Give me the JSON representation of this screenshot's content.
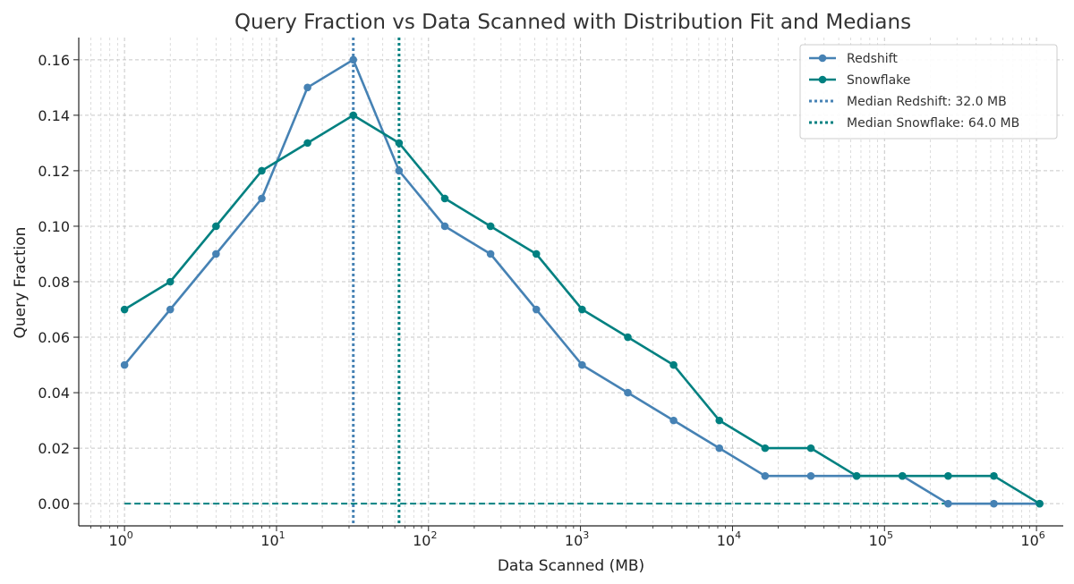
{
  "chart_data": {
    "type": "line",
    "title": "Query Fraction vs Data Scanned with Distribution Fit and Medians",
    "xlabel": "Data Scanned (MB)",
    "ylabel": "Query Fraction",
    "xscale": "log",
    "xlim": [
      0.5,
      1500000
    ],
    "ylim": [
      -0.008,
      0.168
    ],
    "x_ticks": [
      {
        "value": 1,
        "base": "10",
        "exp": "0"
      },
      {
        "value": 10,
        "base": "10",
        "exp": "1"
      },
      {
        "value": 100,
        "base": "10",
        "exp": "2"
      },
      {
        "value": 1000,
        "base": "10",
        "exp": "3"
      },
      {
        "value": 10000,
        "base": "10",
        "exp": "4"
      },
      {
        "value": 100000,
        "base": "10",
        "exp": "5"
      },
      {
        "value": 1000000,
        "base": "10",
        "exp": "6"
      }
    ],
    "y_ticks": [
      {
        "value": 0.0,
        "label": "0.00"
      },
      {
        "value": 0.02,
        "label": "0.02"
      },
      {
        "value": 0.04,
        "label": "0.04"
      },
      {
        "value": 0.06,
        "label": "0.06"
      },
      {
        "value": 0.08,
        "label": "0.08"
      },
      {
        "value": 0.1,
        "label": "0.10"
      },
      {
        "value": 0.12,
        "label": "0.12"
      },
      {
        "value": 0.14,
        "label": "0.14"
      },
      {
        "value": 0.16,
        "label": "0.16"
      }
    ],
    "grid": true,
    "legend_position": "top-right",
    "x": [
      1,
      2,
      4,
      8,
      16,
      32,
      64,
      128,
      256,
      512,
      1024,
      2048,
      4096,
      8192,
      16384,
      32768,
      65536,
      131072,
      262144,
      524288,
      1048576
    ],
    "series": [
      {
        "name": "Redshift",
        "color": "#4682b4",
        "style": "solid-marker",
        "values": [
          0.05,
          0.07,
          0.09,
          0.11,
          0.15,
          0.16,
          0.12,
          0.1,
          0.09,
          0.07,
          0.05,
          0.04,
          0.03,
          0.02,
          0.01,
          0.01,
          0.01,
          0.01,
          0.0,
          0.0,
          0.0
        ]
      },
      {
        "name": "Snowflake",
        "color": "#008080",
        "style": "solid-marker",
        "values": [
          0.07,
          0.08,
          0.1,
          0.12,
          0.13,
          0.14,
          0.13,
          0.11,
          0.1,
          0.09,
          0.07,
          0.06,
          0.05,
          0.03,
          0.02,
          0.02,
          0.01,
          0.01,
          0.01,
          0.01,
          0.0
        ]
      }
    ],
    "fit_line": {
      "color": "#008080",
      "style": "dashed",
      "x": [
        1,
        1048576
      ],
      "values": [
        0.0,
        0.0
      ]
    },
    "medians": [
      {
        "name": "Median Redshift: 32.0 MB",
        "x": 32,
        "color": "#4682b4"
      },
      {
        "name": "Median Snowflake: 64.0 MB",
        "x": 64,
        "color": "#008080"
      }
    ]
  }
}
